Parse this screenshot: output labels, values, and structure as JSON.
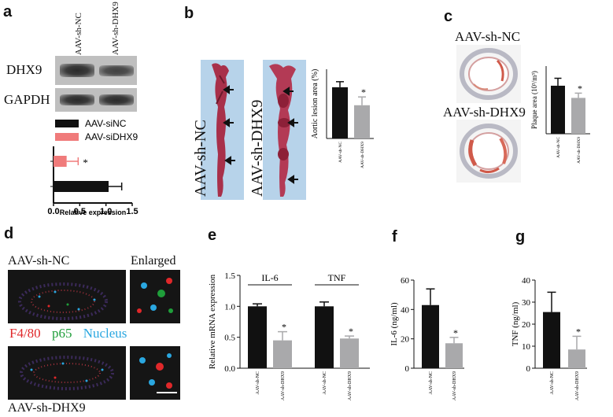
{
  "panels": {
    "a": {
      "letter": "a",
      "lane_labels": [
        "AAV-sh-NC",
        "AAV-sh-DHX9"
      ],
      "blot_labels": [
        "DHX9",
        "GAPDH"
      ],
      "legend": [
        {
          "label": "AAV-siNC",
          "color": "#111111"
        },
        {
          "label": "AAV-siDHX9",
          "color": "#f07b7b"
        }
      ],
      "xlabel": "Relative expression",
      "star": "*"
    },
    "b": {
      "letter": "b",
      "image_labels": [
        "AAV-sh-NC",
        "AAV-sh-DHX9"
      ],
      "star": "*"
    },
    "c": {
      "letter": "c",
      "image_labels": [
        "AAV-sh-NC",
        "AAV-sh-DHX9"
      ],
      "star": "*"
    },
    "d": {
      "letter": "d",
      "labels": {
        "top": "AAV-sh-NC",
        "enlarged": "Enlarged",
        "bottom": "AAV-sh-DHX9"
      },
      "stains": [
        {
          "label": "F4/80",
          "color": "#e0282a"
        },
        {
          "label": "p65",
          "color": "#1f9e3a"
        },
        {
          "label": "Nucleus",
          "color": "#2aa7e0"
        }
      ]
    },
    "e": {
      "letter": "e",
      "groups": [
        "IL-6",
        "TNF"
      ],
      "star": "*"
    },
    "f": {
      "letter": "f",
      "star": "*"
    },
    "g": {
      "letter": "g",
      "star": "*"
    }
  },
  "chart_data": [
    {
      "id": "a",
      "type": "bar",
      "orientation": "horizontal",
      "categories": [
        "AAV-siNC",
        "AAV-siDHX9"
      ],
      "values": [
        1.05,
        0.25
      ],
      "errors": [
        0.25,
        0.22
      ],
      "colors": [
        "#111111",
        "#f07b7b"
      ],
      "xlabel": "Relative expression",
      "xlim": [
        0,
        1.5
      ],
      "xticks": [
        "0.0",
        "0.5",
        "1.0",
        "1.5"
      ]
    },
    {
      "id": "b",
      "type": "bar",
      "categories": [
        "AAV-sh-NC",
        "AAV-sh-DHX9"
      ],
      "values": [
        37,
        24
      ],
      "errors": [
        4,
        6
      ],
      "colors": [
        "#111111",
        "#a9a9ab"
      ],
      "ylabel": "Aortic lesion area (%)",
      "ylim": [
        0,
        50
      ]
    },
    {
      "id": "c",
      "type": "bar",
      "categories": [
        "AAV-sh-NC",
        "AAV-sh-DHX9"
      ],
      "values": [
        355,
        265
      ],
      "errors": [
        55,
        35
      ],
      "colors": [
        "#111111",
        "#a9a9ab"
      ],
      "ylabel": "Plaque area (10³/m³)",
      "ylim": [
        0,
        500
      ]
    },
    {
      "id": "e",
      "type": "bar",
      "groups": [
        "IL-6",
        "TNF"
      ],
      "categories": [
        "AAV-sh-NC",
        "AAV-sh-DHX9",
        "AAV-sh-NC",
        "AAV-sh-DHX9"
      ],
      "values": [
        1.0,
        0.45,
        1.0,
        0.48
      ],
      "errors": [
        0.04,
        0.14,
        0.07,
        0.04
      ],
      "colors": [
        "#111111",
        "#a9a9ab",
        "#111111",
        "#a9a9ab"
      ],
      "ylabel": "Relative mRNA  expression",
      "ylim": [
        0,
        1.5
      ],
      "yticks": [
        "0.0",
        "0.5",
        "1.0",
        "1.5"
      ]
    },
    {
      "id": "f",
      "type": "bar",
      "categories": [
        "AAV-sh-NC",
        "AAV-sh-DHX9"
      ],
      "values": [
        43,
        17
      ],
      "errors": [
        11,
        4
      ],
      "colors": [
        "#111111",
        "#a9a9ab"
      ],
      "ylabel": "IL-6 (ng/ml)",
      "ylim": [
        0,
        60
      ],
      "yticks": [
        "0",
        "20",
        "40",
        "60"
      ]
    },
    {
      "id": "g",
      "type": "bar",
      "categories": [
        "AAV-sh-NC",
        "AAV-sh-DHX9"
      ],
      "values": [
        25.5,
        8.5
      ],
      "errors": [
        9,
        6
      ],
      "colors": [
        "#111111",
        "#a9a9ab"
      ],
      "ylabel": "TNF (ng/ml)",
      "ylim": [
        0,
        40
      ],
      "yticks": [
        "0",
        "10",
        "20",
        "30",
        "40"
      ]
    }
  ]
}
